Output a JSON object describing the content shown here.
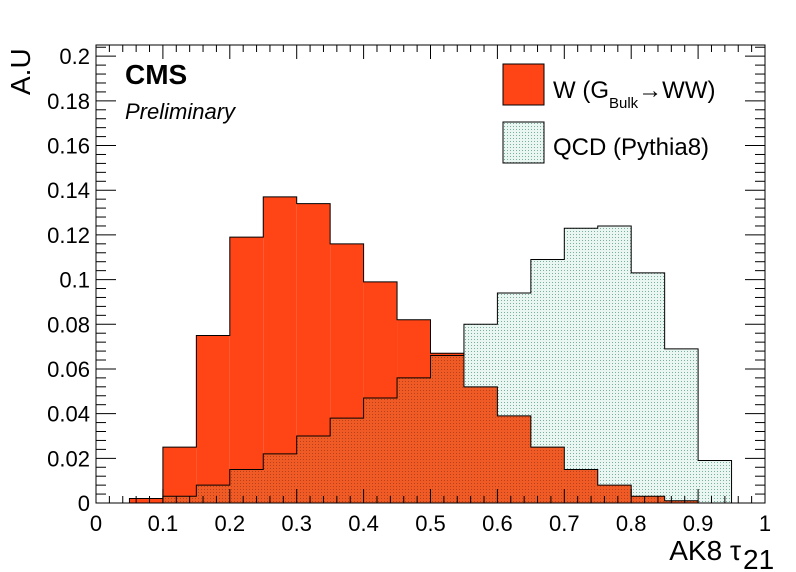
{
  "chart_data": {
    "type": "bar",
    "subtype": "histogram",
    "xlabel": "AK8 τ",
    "xlabel_subscript": "21",
    "ylabel": "A.U",
    "xlim": [
      0,
      1
    ],
    "ylim": [
      0,
      0.205
    ],
    "x_ticks": [
      "0",
      "0.1",
      "0.2",
      "0.3",
      "0.4",
      "0.5",
      "0.6",
      "0.7",
      "0.8",
      "0.9",
      "1"
    ],
    "y_ticks": [
      "0",
      "0.02",
      "0.04",
      "0.06",
      "0.08",
      "0.1",
      "0.12",
      "0.14",
      "0.16",
      "0.18",
      "0.2"
    ],
    "bin_edges": [
      0.05,
      0.1,
      0.15,
      0.2,
      0.25,
      0.3,
      0.35,
      0.4,
      0.45,
      0.5,
      0.55,
      0.6,
      0.65,
      0.7,
      0.75,
      0.8,
      0.85,
      0.9,
      0.95
    ],
    "series": [
      {
        "name": "W (G",
        "name_subscript": "Bulk",
        "name_suffix": "→WW)",
        "color": "#ff4516",
        "values": [
          0.002,
          0.025,
          0.075,
          0.119,
          0.137,
          0.134,
          0.116,
          0.099,
          0.082,
          0.067,
          0.052,
          0.039,
          0.025,
          0.015,
          0.008,
          0.003,
          0.001,
          0.0
        ]
      },
      {
        "name": "QCD (Pythia8)",
        "color": "#e6f5f0",
        "hatch_color": "#7aaea0",
        "values": [
          0.0,
          0.003,
          0.008,
          0.015,
          0.022,
          0.03,
          0.038,
          0.047,
          0.056,
          0.066,
          0.08,
          0.094,
          0.109,
          0.123,
          0.124,
          0.103,
          0.069,
          0.019
        ]
      }
    ],
    "legend_position": "top-right"
  },
  "labels": {
    "experiment": "CMS",
    "status": "Preliminary"
  }
}
